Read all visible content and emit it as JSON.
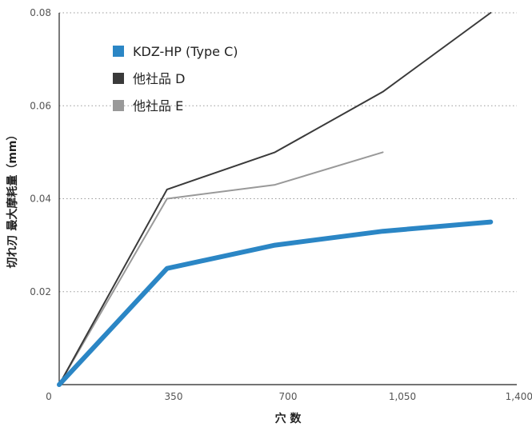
{
  "chart_data": {
    "type": "line",
    "xlabel": "穴 数",
    "ylabel": "切れ刃 最大摩耗量（mm）",
    "xlim": [
      0,
      1400
    ],
    "ylim": [
      0,
      0.08
    ],
    "x_ticks": [
      {
        "value": 0,
        "label": "0"
      },
      {
        "value": 350,
        "label": "350"
      },
      {
        "value": 700,
        "label": "700"
      },
      {
        "value": 1050,
        "label": "1,050"
      },
      {
        "value": 1400,
        "label": "1,400"
      }
    ],
    "y_ticks": [
      {
        "value": 0.02,
        "label": "0.02"
      },
      {
        "value": 0.04,
        "label": "0.04"
      },
      {
        "value": 0.06,
        "label": "0.06"
      },
      {
        "value": 0.08,
        "label": "0.08"
      }
    ],
    "grid": "horizontal dotted",
    "legend_position": "top-left",
    "series": [
      {
        "name": "KDZ-HP (Type C)",
        "color": "#2b86c5",
        "x": [
          0,
          330,
          660,
          990,
          1320
        ],
        "y": [
          0,
          0.025,
          0.03,
          0.033,
          0.035
        ]
      },
      {
        "name": "他社品 D",
        "color": "#3a3a3a",
        "x": [
          0,
          330,
          660,
          990,
          1320
        ],
        "y": [
          0,
          0.042,
          0.05,
          0.063,
          0.08
        ]
      },
      {
        "name": "他社品 E",
        "color": "#999999",
        "x": [
          0,
          330,
          660,
          990
        ],
        "y": [
          0,
          0.04,
          0.043,
          0.05
        ]
      }
    ]
  }
}
